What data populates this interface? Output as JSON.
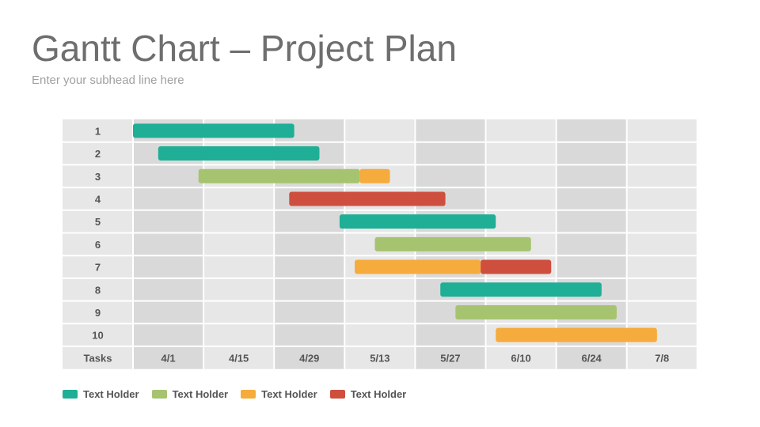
{
  "header": {
    "title": "Gantt Chart – Project Plan",
    "subtitle": "Enter your subhead line here"
  },
  "chart_data": {
    "type": "gantt",
    "tasks_header": "Tasks",
    "date_labels": [
      "4/1",
      "4/15",
      "4/29",
      "5/13",
      "5/27",
      "6/10",
      "6/24",
      "7/8"
    ],
    "date_values": [
      "2024-04-01",
      "2024-04-15",
      "2024-04-29",
      "2024-05-13",
      "2024-05-27",
      "2024-06-10",
      "2024-06-24",
      "2024-07-08"
    ],
    "rows": [
      {
        "task": "1",
        "segments": [
          {
            "start": "2024-04-01",
            "end": "2024-05-03",
            "series": 0
          }
        ]
      },
      {
        "task": "2",
        "segments": [
          {
            "start": "2024-04-06",
            "end": "2024-05-08",
            "series": 0
          }
        ]
      },
      {
        "task": "3",
        "segments": [
          {
            "start": "2024-04-14",
            "end": "2024-05-16",
            "series": 1
          },
          {
            "start": "2024-05-16",
            "end": "2024-05-22",
            "series": 2
          }
        ]
      },
      {
        "task": "4",
        "segments": [
          {
            "start": "2024-05-02",
            "end": "2024-06-02",
            "series": 3
          }
        ]
      },
      {
        "task": "5",
        "segments": [
          {
            "start": "2024-05-12",
            "end": "2024-06-12",
            "series": 0
          }
        ]
      },
      {
        "task": "6",
        "segments": [
          {
            "start": "2024-05-19",
            "end": "2024-06-19",
            "series": 1
          }
        ]
      },
      {
        "task": "7",
        "segments": [
          {
            "start": "2024-05-15",
            "end": "2024-06-09",
            "series": 2
          },
          {
            "start": "2024-06-09",
            "end": "2024-06-23",
            "series": 3
          }
        ]
      },
      {
        "task": "8",
        "segments": [
          {
            "start": "2024-06-01",
            "end": "2024-07-03",
            "series": 0
          }
        ]
      },
      {
        "task": "9",
        "segments": [
          {
            "start": "2024-06-04",
            "end": "2024-07-06",
            "series": 1
          }
        ]
      },
      {
        "task": "10",
        "segments": [
          {
            "start": "2024-06-12",
            "end": "2024-07-14",
            "series": 2
          }
        ]
      }
    ],
    "series": [
      {
        "name": "Text Holder",
        "color": "#1fae96"
      },
      {
        "name": "Text Holder",
        "color": "#a6c46f"
      },
      {
        "name": "Text Holder",
        "color": "#f5ac3c"
      },
      {
        "name": "Text Holder",
        "color": "#cf4f3f"
      }
    ],
    "colors": {
      "column_dark": "#d9d9d9",
      "column_light": "#e7e7e7",
      "grid": "#ffffff"
    }
  }
}
